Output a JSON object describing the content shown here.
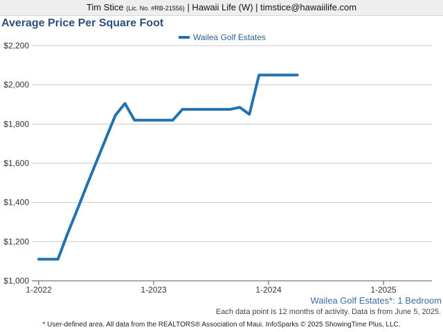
{
  "header": {
    "name": "Tim Stice",
    "license": "(Lic. No. #RB-21556)",
    "rest": "| Hawaii Life (W) | timstice@hawaiilife.com"
  },
  "chart_data": {
    "type": "line",
    "title": "Average Price Per Square Foot",
    "subtitle": "Wailea Golf Estates*: 1 Bedroom",
    "note": "Each data point is 12 months of activity. Data is from June 5, 2025.",
    "footer": "* User-defined area. All data from the REALTORS® Association of Maui. InfoSparks © 2025 ShowingTime Plus, LLC.",
    "legend_position": "top-center",
    "grid": true,
    "xlabel": "",
    "ylabel": "",
    "ylim": [
      1000,
      2200
    ],
    "y_ticks": [
      1000,
      1200,
      1400,
      1600,
      1800,
      2000,
      2200
    ],
    "y_tick_labels": [
      "$1,000",
      "$1,200",
      "$1,400",
      "$1,600",
      "$1,800",
      "$2,000",
      "$2,200"
    ],
    "x_ticks": [
      "1-2022",
      "1-2023",
      "1-2024",
      "1-2025"
    ],
    "series": [
      {
        "name": "Wailea Golf Estates",
        "color": "#2271b3",
        "x": [
          "2022-01",
          "2022-02",
          "2022-03",
          "2022-04",
          "2022-05",
          "2022-06",
          "2022-07",
          "2022-08",
          "2022-09",
          "2022-10",
          "2022-11",
          "2022-12",
          "2023-01",
          "2023-02",
          "2023-03",
          "2023-04",
          "2023-05",
          "2023-06",
          "2023-07",
          "2023-08",
          "2023-09",
          "2023-10",
          "2023-11",
          "2023-12",
          "2024-01",
          "2024-02",
          "2024-03",
          "2024-04"
        ],
        "values": [
          1110,
          1110,
          1110,
          1240,
          1360,
          1485,
          1605,
          1725,
          1845,
          1905,
          1820,
          1820,
          1820,
          1820,
          1820,
          1875,
          1875,
          1875,
          1875,
          1875,
          1875,
          1885,
          1850,
          2050,
          2050,
          2050,
          2050,
          2050
        ]
      }
    ]
  }
}
